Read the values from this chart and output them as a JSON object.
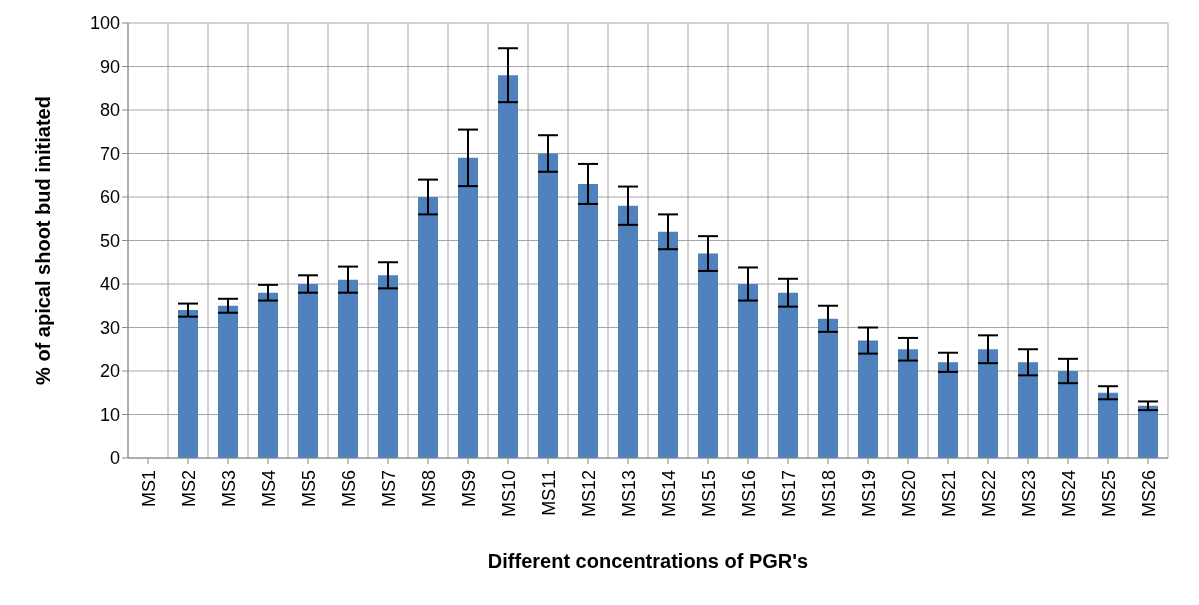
{
  "chart_data": {
    "type": "bar",
    "xlabel": "Different concentrations of PGR's",
    "ylabel": "%  of apical shoot bud initiated",
    "categories": [
      "MS1",
      "MS2",
      "MS3",
      "MS4",
      "MS5",
      "MS6",
      "MS7",
      "MS8",
      "MS9",
      "MS10",
      "MS11",
      "MS12",
      "MS13",
      "MS14",
      "MS15",
      "MS16",
      "MS17",
      "MS18",
      "MS19",
      "MS20",
      "MS21",
      "MS22",
      "MS23",
      "MS24",
      "MS25",
      "MS26"
    ],
    "values": [
      0,
      34,
      35,
      38,
      40,
      41,
      42,
      60,
      69,
      88,
      70,
      63,
      58,
      52,
      47,
      40,
      38,
      32,
      27,
      25,
      22,
      25,
      22,
      20,
      15,
      12
    ],
    "errors": [
      null,
      1.5,
      1.6,
      1.8,
      2,
      3,
      3,
      4,
      6.5,
      6.2,
      4.2,
      4.6,
      4.4,
      4,
      4,
      3.8,
      3.2,
      3,
      3,
      2.6,
      2.2,
      3.2,
      3,
      2.8,
      1.5,
      1
    ],
    "color": "#4f81bd",
    "ylim": [
      0,
      100
    ],
    "yticks": [
      0,
      10,
      20,
      30,
      40,
      50,
      60,
      70,
      80,
      90,
      100
    ],
    "grid": true
  }
}
